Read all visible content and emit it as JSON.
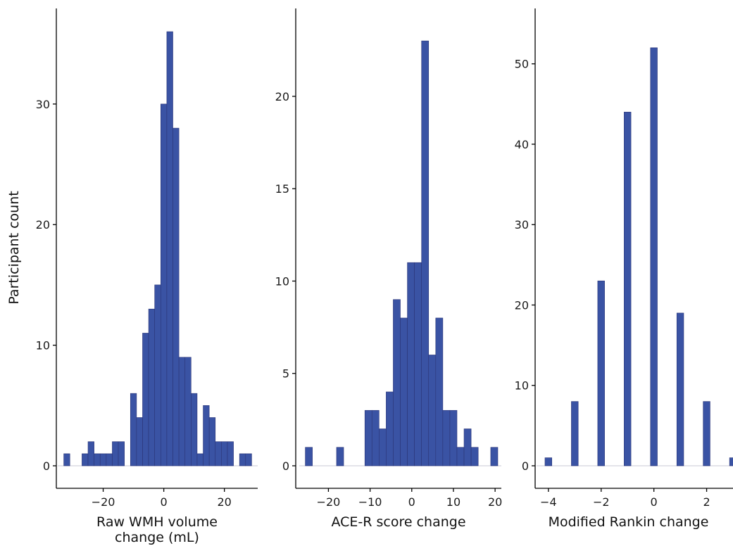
{
  "chart_data": [
    {
      "type": "bar",
      "subtype": "histogram",
      "xlabel_lines": [
        "Raw WMH volume",
        "change (mL)"
      ],
      "ylabel": "Participant count",
      "bar_color": "#3a53a4",
      "xlim": [
        -35,
        31
      ],
      "ylim": [
        0,
        36
      ],
      "xticks": [
        -20,
        0,
        20
      ],
      "xtick_labels": [
        "−20",
        "0",
        "20"
      ],
      "yticks": [
        0,
        10,
        20,
        30
      ],
      "ytick_labels": [
        "0",
        "10",
        "20",
        "30"
      ],
      "bin_width": 2,
      "bins": [
        {
          "x": -32,
          "y": 1
        },
        {
          "x": -26,
          "y": 1
        },
        {
          "x": -24,
          "y": 2
        },
        {
          "x": -22,
          "y": 1
        },
        {
          "x": -20,
          "y": 1
        },
        {
          "x": -18,
          "y": 1
        },
        {
          "x": -16,
          "y": 2
        },
        {
          "x": -14,
          "y": 2
        },
        {
          "x": -10,
          "y": 6
        },
        {
          "x": -8,
          "y": 4
        },
        {
          "x": -6,
          "y": 11
        },
        {
          "x": -4,
          "y": 13
        },
        {
          "x": -2,
          "y": 15
        },
        {
          "x": 0,
          "y": 30
        },
        {
          "x": 2,
          "y": 36
        },
        {
          "x": 4,
          "y": 28
        },
        {
          "x": 6,
          "y": 9
        },
        {
          "x": 8,
          "y": 9
        },
        {
          "x": 10,
          "y": 6
        },
        {
          "x": 12,
          "y": 1
        },
        {
          "x": 14,
          "y": 5
        },
        {
          "x": 16,
          "y": 4
        },
        {
          "x": 18,
          "y": 2
        },
        {
          "x": 20,
          "y": 2
        },
        {
          "x": 22,
          "y": 2
        },
        {
          "x": 26,
          "y": 1
        },
        {
          "x": 28,
          "y": 1
        }
      ]
    },
    {
      "type": "bar",
      "subtype": "histogram",
      "xlabel_lines": [
        "ACE-R score change"
      ],
      "ylabel": "",
      "bar_color": "#3a53a4",
      "xlim": [
        -27,
        21.5
      ],
      "ylim": [
        0,
        23.5
      ],
      "xticks": [
        -20,
        -10,
        0,
        10,
        20
      ],
      "xtick_labels": [
        "−20",
        "−10",
        "0",
        "10",
        "20"
      ],
      "yticks": [
        0,
        5,
        10,
        15,
        20
      ],
      "ytick_labels": [
        "0",
        "5",
        "10",
        "15",
        "20"
      ],
      "bin_width": 1.7,
      "bins": [
        {
          "x": -24.7,
          "y": 1
        },
        {
          "x": -17.2,
          "y": 1
        },
        {
          "x": -10.4,
          "y": 3
        },
        {
          "x": -8.7,
          "y": 3
        },
        {
          "x": -7.0,
          "y": 2
        },
        {
          "x": -5.3,
          "y": 4
        },
        {
          "x": -3.6,
          "y": 9
        },
        {
          "x": -1.9,
          "y": 8
        },
        {
          "x": -0.2,
          "y": 11
        },
        {
          "x": 1.5,
          "y": 11
        },
        {
          "x": 3.2,
          "y": 23
        },
        {
          "x": 4.9,
          "y": 6
        },
        {
          "x": 6.6,
          "y": 8
        },
        {
          "x": 8.3,
          "y": 3
        },
        {
          "x": 10.0,
          "y": 3
        },
        {
          "x": 11.7,
          "y": 1
        },
        {
          "x": 13.4,
          "y": 2
        },
        {
          "x": 15.1,
          "y": 1
        },
        {
          "x": 19.8,
          "y": 1
        }
      ]
    },
    {
      "type": "bar",
      "subtype": "histogram",
      "xlabel_lines": [
        "Modified Rankin change"
      ],
      "ylabel": "",
      "bar_color": "#3a53a4",
      "xlim": [
        -4.45,
        3.0
      ],
      "ylim": [
        0,
        54
      ],
      "xticks": [
        -4,
        -2,
        0,
        2
      ],
      "xtick_labels": [
        "−4",
        "−2",
        "0",
        "2"
      ],
      "yticks": [
        0,
        10,
        20,
        30,
        40,
        50
      ],
      "ytick_labels": [
        "0",
        "10",
        "20",
        "30",
        "40",
        "50"
      ],
      "bin_width": 0.26,
      "bins": [
        {
          "x": -4,
          "y": 1
        },
        {
          "x": -3,
          "y": 8
        },
        {
          "x": -2,
          "y": 23
        },
        {
          "x": -1,
          "y": 44
        },
        {
          "x": 0,
          "y": 52
        },
        {
          "x": 1,
          "y": 19
        },
        {
          "x": 2,
          "y": 8
        },
        {
          "x": 3,
          "y": 1
        }
      ]
    }
  ]
}
